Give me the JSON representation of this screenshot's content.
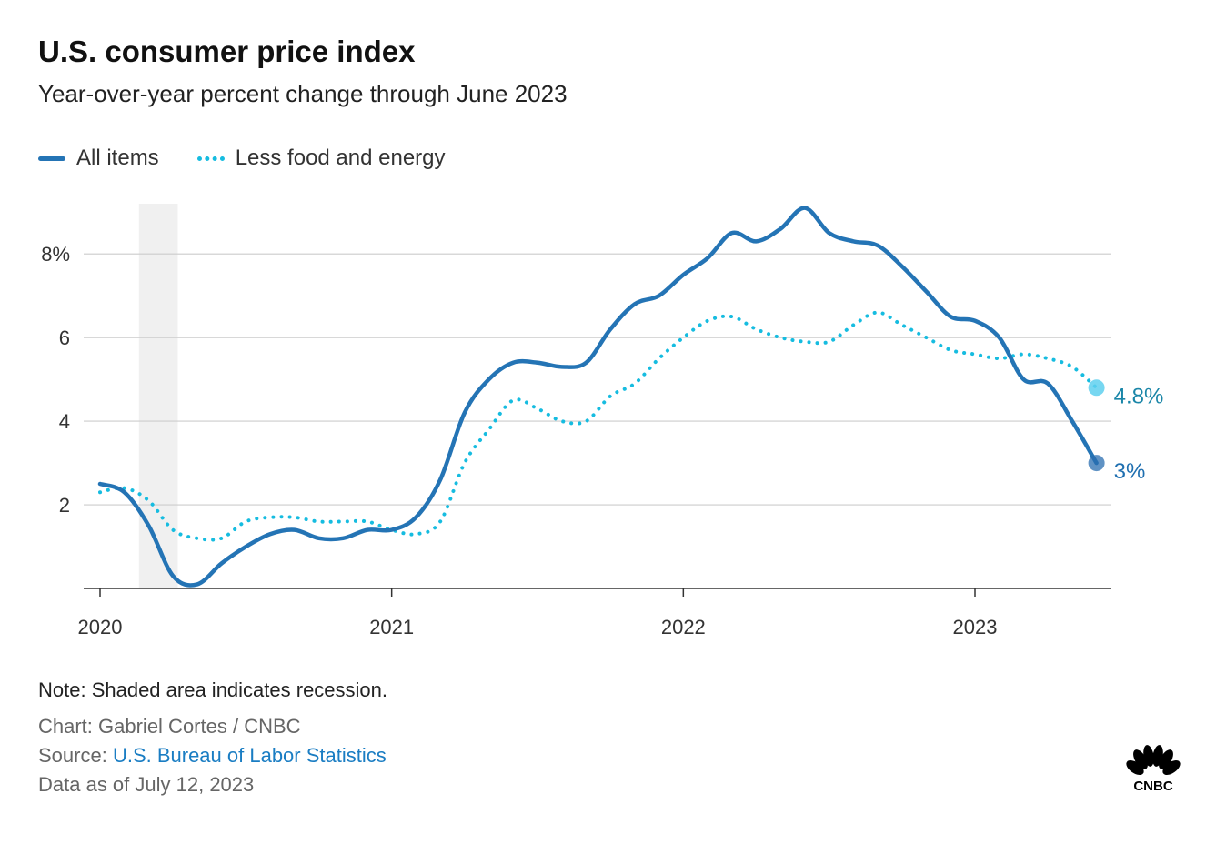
{
  "header": {
    "title": "U.S. consumer price index",
    "subtitle": "Year-over-year percent change through June 2023"
  },
  "legend": {
    "all_items": "All items",
    "core": "Less food and energy"
  },
  "colors": {
    "all_items": "#2474b5",
    "core": "#16bce0",
    "recession": "#f0f0f0",
    "core_label": "#1a86a8",
    "all_label": "#1f6fb0"
  },
  "footer": {
    "note": "Note: Shaded area indicates recession.",
    "credit": "Chart: Gabriel Cortes / CNBC",
    "source_prefix": "Source: ",
    "source_link": "U.S. Bureau of Labor Statistics",
    "as_of": "Data as of July 12, 2023",
    "logo_text": "CNBC"
  },
  "chart_data": {
    "type": "line",
    "x": [
      "2020-01",
      "2020-02",
      "2020-03",
      "2020-04",
      "2020-05",
      "2020-06",
      "2020-07",
      "2020-08",
      "2020-09",
      "2020-10",
      "2020-11",
      "2020-12",
      "2021-01",
      "2021-02",
      "2021-03",
      "2021-04",
      "2021-05",
      "2021-06",
      "2021-07",
      "2021-08",
      "2021-09",
      "2021-10",
      "2021-11",
      "2021-12",
      "2022-01",
      "2022-02",
      "2022-03",
      "2022-04",
      "2022-05",
      "2022-06",
      "2022-07",
      "2022-08",
      "2022-09",
      "2022-10",
      "2022-11",
      "2022-12",
      "2023-01",
      "2023-02",
      "2023-03",
      "2023-04",
      "2023-05",
      "2023-06"
    ],
    "series": [
      {
        "name": "All items",
        "values": [
          2.5,
          2.3,
          1.5,
          0.3,
          0.1,
          0.6,
          1.0,
          1.3,
          1.4,
          1.2,
          1.2,
          1.4,
          1.4,
          1.7,
          2.6,
          4.2,
          5.0,
          5.4,
          5.4,
          5.3,
          5.4,
          6.2,
          6.8,
          7.0,
          7.5,
          7.9,
          8.5,
          8.3,
          8.6,
          9.1,
          8.5,
          8.3,
          8.2,
          7.7,
          7.1,
          6.5,
          6.4,
          6.0,
          5.0,
          4.9,
          4.0,
          3.0
        ],
        "end_label": "3%"
      },
      {
        "name": "Less food and energy",
        "values": [
          2.3,
          2.4,
          2.1,
          1.4,
          1.2,
          1.2,
          1.6,
          1.7,
          1.7,
          1.6,
          1.6,
          1.6,
          1.4,
          1.3,
          1.6,
          3.0,
          3.8,
          4.5,
          4.3,
          4.0,
          4.0,
          4.6,
          4.9,
          5.5,
          6.0,
          6.4,
          6.5,
          6.2,
          6.0,
          5.9,
          5.9,
          6.3,
          6.6,
          6.3,
          6.0,
          5.7,
          5.6,
          5.5,
          5.6,
          5.5,
          5.3,
          4.8
        ],
        "end_label": "4.8%"
      }
    ],
    "x_ticks": [
      "2020",
      "2021",
      "2022",
      "2023"
    ],
    "y_ticks": [
      "",
      "2",
      "4",
      "6",
      "8%"
    ],
    "y_tick_values": [
      0,
      2,
      4,
      6,
      8
    ],
    "ylim": [
      0,
      9.2
    ],
    "recession": [
      "2020-02",
      "2020-04"
    ],
    "grid": true
  }
}
